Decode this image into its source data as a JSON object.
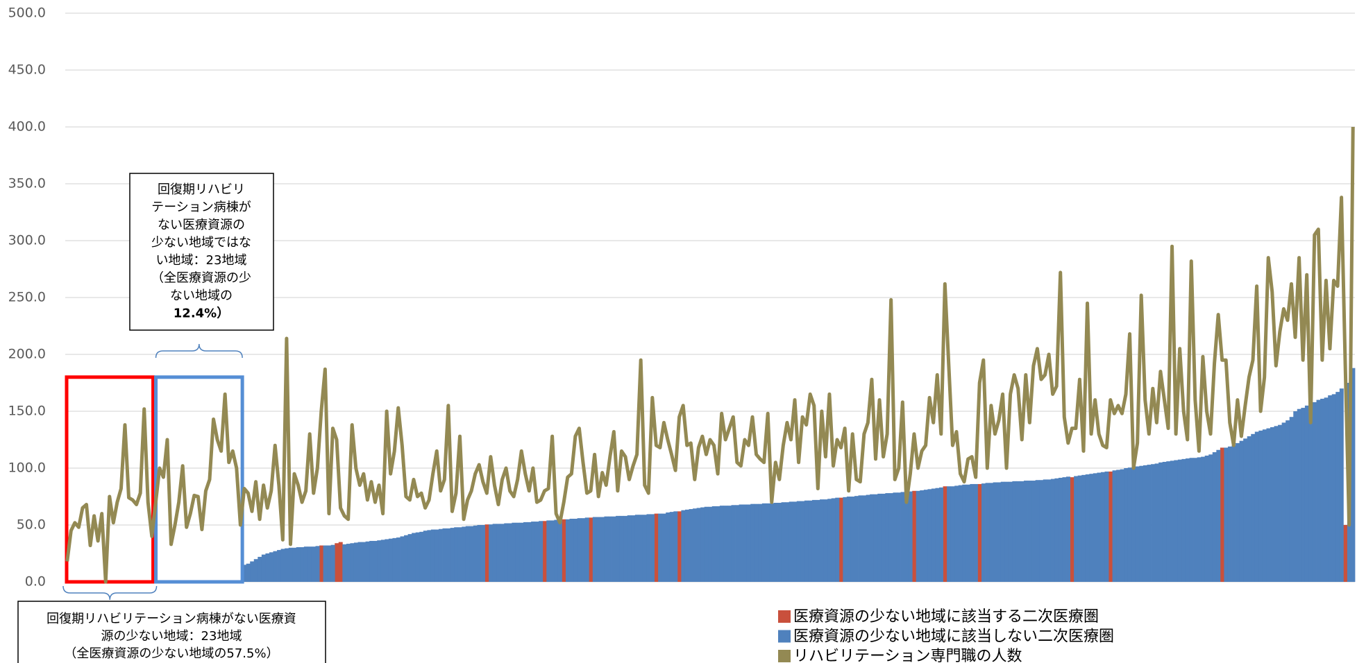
{
  "chart_data": {
    "type": "bar_line",
    "ylim": [
      0,
      500
    ],
    "yticks": [
      {
        "value": 0,
        "label": "0.0"
      },
      {
        "value": 50,
        "label": "50.0"
      },
      {
        "value": 100,
        "label": "100.0"
      },
      {
        "value": 150,
        "label": "150.0"
      },
      {
        "value": 200,
        "label": "200.0"
      },
      {
        "value": 250,
        "label": "250.0"
      },
      {
        "value": 300,
        "label": "300.0"
      },
      {
        "value": 350,
        "label": "350.0"
      },
      {
        "value": 400,
        "label": "400.0"
      },
      {
        "value": 450,
        "label": "450.0"
      },
      {
        "value": 500,
        "label": "500.0"
      }
    ],
    "grid": true,
    "legend": "bottom-right",
    "annotations": [
      {
        "lines": [
          "回復期リハビリ",
          "テーション病棟が",
          "ない医療資源の",
          "少ない地域ではな",
          "い地域：23地域",
          "（全医療資源の少",
          "ない地域の",
          "12.4%）"
        ]
      },
      {
        "lines": [
          "回復期リハビリテーション病棟がない医療資",
          "源の少ない地域：23地域",
          "（全医療資源の少ない地域の57.5%）"
        ]
      }
    ],
    "series": [
      {
        "name": "医療資源の少ない地域に該当する二次医療圏",
        "color": "#c9503c",
        "kind": "bar",
        "values": [
          0,
          0,
          0,
          0,
          0,
          0,
          0,
          0,
          0,
          0,
          0,
          0,
          0,
          0,
          0,
          0,
          0,
          0,
          0,
          0,
          0,
          0,
          0,
          null,
          null,
          null,
          null,
          null,
          null,
          null,
          null,
          null,
          null,
          null,
          null,
          null,
          null,
          null,
          null,
          null,
          null,
          null,
          null,
          null,
          null,
          null,
          null,
          null,
          null,
          null,
          null,
          null,
          null,
          null,
          null,
          null,
          null,
          null,
          null,
          null,
          null,
          null,
          null,
          null,
          null,
          null,
          32,
          null,
          null,
          null,
          34,
          35,
          null,
          null,
          null,
          null,
          null,
          null,
          null,
          null,
          null,
          null,
          null,
          null,
          null,
          null,
          null,
          null,
          null,
          null,
          null,
          null,
          null,
          null,
          null,
          null,
          null,
          null,
          null,
          null,
          null,
          null,
          null,
          null,
          null,
          null,
          null,
          null,
          null,
          50.5,
          null,
          null,
          null,
          null,
          null,
          null,
          null,
          null,
          null,
          null,
          null,
          null,
          null,
          null,
          53.5,
          null,
          null,
          null,
          null,
          55,
          null,
          null,
          null,
          null,
          null,
          null,
          56.5,
          null,
          null,
          null,
          null,
          null,
          null,
          null,
          null,
          null,
          null,
          null,
          null,
          null,
          null,
          null,
          null,
          60,
          null,
          null,
          null,
          null,
          null,
          62,
          null,
          null,
          null,
          null,
          null,
          null,
          null,
          null,
          null,
          null,
          null,
          null,
          null,
          null,
          null,
          null,
          null,
          null,
          null,
          null,
          null,
          null,
          null,
          null,
          null,
          null,
          null,
          null,
          null,
          null,
          null,
          null,
          null,
          null,
          null,
          null,
          null,
          null,
          null,
          null,
          null,
          74,
          null,
          null,
          null,
          null,
          null,
          null,
          null,
          null,
          null,
          null,
          null,
          null,
          null,
          null,
          null,
          null,
          null,
          null,
          80,
          null,
          null,
          null,
          null,
          null,
          null,
          null,
          84,
          null,
          null,
          null,
          null,
          null,
          null,
          null,
          null,
          86,
          null,
          null,
          null,
          null,
          null,
          null,
          null,
          null,
          null,
          null,
          null,
          null,
          null,
          null,
          null,
          null,
          null,
          null,
          null,
          null,
          null,
          null,
          null,
          92,
          null,
          null,
          null,
          null,
          null,
          null,
          null,
          null,
          null,
          97,
          null,
          null,
          null,
          null,
          null,
          null,
          null,
          null,
          null,
          null,
          null,
          null,
          null,
          null,
          null,
          null,
          null,
          null,
          null,
          null,
          null,
          null,
          null,
          null,
          null,
          null,
          null,
          null,
          118,
          null,
          null,
          null,
          null,
          null,
          null,
          null,
          null,
          null,
          null,
          null,
          null,
          null,
          null,
          null,
          null,
          null,
          null,
          null,
          null,
          null,
          null,
          null,
          null,
          null,
          null,
          null,
          null,
          null,
          null,
          null,
          50,
          null,
          null
        ]
      },
      {
        "name": "医療資源の少ない地域に該当しない二次医療圏",
        "color": "#4f81bd",
        "kind": "bar",
        "values": [
          null,
          null,
          null,
          null,
          null,
          null,
          null,
          null,
          null,
          null,
          null,
          null,
          null,
          null,
          null,
          null,
          null,
          null,
          null,
          null,
          null,
          null,
          null,
          0,
          0,
          0,
          0,
          0,
          0,
          0,
          0,
          0,
          0,
          0,
          0,
          0,
          0,
          0,
          0,
          0,
          0,
          0,
          0,
          0,
          0,
          0,
          15,
          16,
          18,
          20,
          22,
          24,
          25,
          26,
          27,
          28,
          29,
          29.5,
          30,
          30,
          30.5,
          30.5,
          31,
          31,
          31,
          31.5,
          null,
          32,
          32,
          32.5,
          null,
          null,
          33,
          33.5,
          34,
          34.5,
          35,
          35,
          35.5,
          36,
          36,
          36.5,
          37,
          37.5,
          38,
          38.5,
          39,
          40,
          41,
          42,
          43,
          43.5,
          44,
          45,
          45.5,
          46,
          46,
          46.5,
          47,
          47,
          47.5,
          48,
          48,
          48.5,
          49,
          49,
          49.5,
          50,
          50,
          null,
          50.5,
          51,
          51,
          51,
          51.5,
          51.5,
          52,
          52,
          52,
          52.5,
          52.5,
          53,
          53,
          53.5,
          null,
          54,
          54,
          54.5,
          54.5,
          null,
          55,
          55.5,
          55.5,
          56,
          56,
          56.5,
          null,
          57,
          57,
          57,
          57.5,
          57.5,
          57.5,
          58,
          58,
          58,
          58.5,
          58.5,
          59,
          59,
          59,
          59.5,
          59.5,
          null,
          60,
          60,
          61,
          61.5,
          62,
          null,
          63,
          63.5,
          64,
          64.5,
          65,
          65.5,
          66,
          66,
          66.5,
          66.5,
          67,
          67,
          67,
          67.5,
          67.5,
          68,
          68,
          68,
          68.5,
          68.5,
          68.5,
          69,
          69,
          69,
          69.5,
          69.5,
          70,
          70,
          70.5,
          70.5,
          71,
          71,
          71.5,
          71.5,
          72,
          72,
          72.5,
          72.5,
          73,
          73.5,
          74,
          null,
          74.5,
          75,
          75,
          75.5,
          76,
          76,
          76.5,
          77,
          77,
          77.5,
          77.5,
          78,
          78,
          78.5,
          78.5,
          79,
          79,
          79.5,
          null,
          80,
          80.5,
          81,
          81.5,
          82,
          82.5,
          83,
          null,
          84,
          84,
          84.5,
          85,
          85.5,
          85.5,
          86,
          86,
          null,
          86.5,
          87,
          87,
          87.5,
          87.5,
          88,
          88,
          88,
          88.5,
          88.5,
          88.5,
          89,
          89,
          89,
          89.5,
          89.5,
          90,
          90,
          90.5,
          91,
          91.5,
          92,
          92.5,
          null,
          93,
          93.5,
          94,
          94.5,
          95,
          95.5,
          96,
          96.5,
          97,
          null,
          98,
          98.5,
          99,
          100,
          100.5,
          101,
          101.5,
          102,
          102.5,
          103,
          103.5,
          104,
          105,
          105.5,
          106,
          106.5,
          107,
          107.5,
          108,
          108.5,
          109,
          109,
          109.5,
          110,
          111,
          112,
          114,
          116,
          null,
          118,
          119,
          120,
          122,
          124,
          126,
          128,
          130,
          132,
          133,
          134,
          135,
          136,
          137,
          138,
          140,
          142,
          145,
          150,
          152,
          153,
          155,
          156,
          158,
          160,
          161,
          162,
          164,
          165,
          167,
          170,
          null,
          175,
          188
        ]
      },
      {
        "name": "リハビリテーション専門職の人数",
        "color": "#938953",
        "kind": "line",
        "values": [
          18,
          45,
          52,
          48,
          65,
          68,
          32,
          58,
          36,
          60,
          0,
          75,
          52,
          70,
          82,
          138,
          74,
          72,
          68,
          78,
          152,
          70,
          40,
          70,
          100,
          92,
          125,
          33,
          50,
          70,
          102,
          48,
          60,
          76,
          75,
          46,
          80,
          90,
          143,
          125,
          115,
          165,
          105,
          115,
          100,
          50,
          82,
          78,
          62,
          88,
          55,
          85,
          65,
          80,
          120,
          85,
          37,
          214,
          33,
          95,
          85,
          70,
          80,
          130,
          78,
          100,
          150,
          187,
          60,
          135,
          125,
          65,
          58,
          55,
          138,
          100,
          85,
          95,
          72,
          88,
          70,
          85,
          60,
          150,
          95,
          115,
          153,
          120,
          75,
          72,
          90,
          75,
          78,
          65,
          72,
          95,
          115,
          80,
          90,
          155,
          62,
          78,
          128,
          55,
          72,
          80,
          95,
          103,
          88,
          78,
          110,
          85,
          68,
          90,
          100,
          80,
          75,
          90,
          115,
          95,
          80,
          100,
          70,
          72,
          80,
          82,
          128,
          60,
          52,
          70,
          92,
          95,
          128,
          135,
          105,
          78,
          80,
          112,
          75,
          96,
          85,
          110,
          132,
          80,
          115,
          110,
          90,
          102,
          112,
          195,
          85,
          78,
          162,
          120,
          118,
          140,
          125,
          112,
          98,
          145,
          155,
          120,
          122,
          90,
          118,
          128,
          112,
          125,
          120,
          95,
          148,
          125,
          135,
          145,
          105,
          102,
          125,
          120,
          145,
          112,
          108,
          105,
          148,
          70,
          105,
          90,
          120,
          140,
          125,
          160,
          105,
          145,
          138,
          165,
          155,
          82,
          150,
          110,
          165,
          102,
          125,
          118,
          135,
          80,
          130,
          90,
          88,
          130,
          140,
          178,
          108,
          160,
          110,
          130,
          248,
          90,
          100,
          158,
          70,
          95,
          130,
          100,
          115,
          120,
          162,
          140,
          182,
          130,
          262,
          190,
          120,
          132,
          95,
          88,
          108,
          110,
          92,
          175,
          195,
          100,
          155,
          130,
          142,
          165,
          100,
          165,
          182,
          170,
          125,
          182,
          140,
          190,
          205,
          178,
          182,
          200,
          165,
          172,
          272,
          145,
          122,
          135,
          135,
          178,
          115,
          245,
          130,
          160,
          130,
          120,
          118,
          160,
          148,
          155,
          148,
          165,
          218,
          100,
          122,
          252,
          160,
          130,
          170,
          140,
          185,
          160,
          135,
          295,
          130,
          205,
          150,
          125,
          282,
          160,
          115,
          198,
          150,
          130,
          192,
          235,
          195,
          195,
          140,
          120,
          160,
          128,
          155,
          180,
          195,
          260,
          150,
          180,
          285,
          255,
          190,
          220,
          240,
          230,
          262,
          215,
          285,
          195,
          270,
          140,
          305,
          310,
          195,
          265,
          205,
          265,
          260,
          338,
          190,
          50,
          400
        ]
      }
    ]
  }
}
